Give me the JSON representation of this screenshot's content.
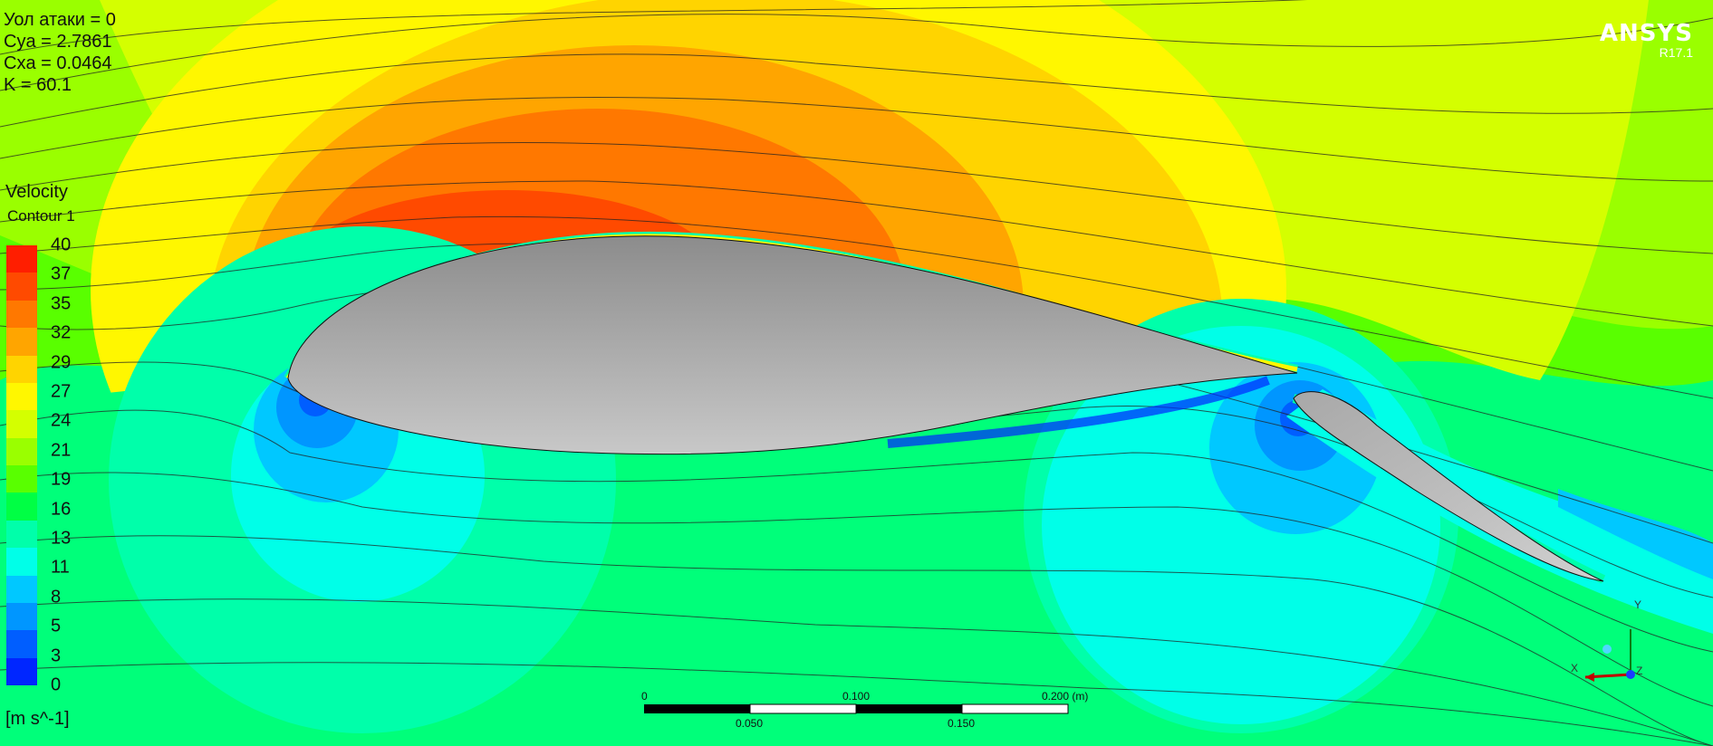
{
  "results": {
    "angle": "Уол атаки = 0",
    "cya": "Cya = 2.7861",
    "cxa": "Cxa = 0.0464",
    "k": "K = 60.1"
  },
  "legend": {
    "variable": "Velocity",
    "name": "Contour 1",
    "units": "[m s^-1]",
    "ticks": [
      "40",
      "37",
      "35",
      "32",
      "29",
      "27",
      "24",
      "21",
      "19",
      "16",
      "13",
      "11",
      "8",
      "5",
      "3",
      "0"
    ],
    "colors": [
      "#ff1e00",
      "#ff4a00",
      "#ff7800",
      "#ffa500",
      "#ffd400",
      "#fff700",
      "#d4ff00",
      "#9aff00",
      "#59ff00",
      "#00ff44",
      "#00ffaa",
      "#00ffe8",
      "#00c8ff",
      "#0096ff",
      "#005eff",
      "#0026ff"
    ]
  },
  "logo": {
    "name": "ANSYS",
    "version": "R17.1"
  },
  "scale_bar": {
    "top_labels": [
      "0",
      "0.100",
      "0.200  (m)"
    ],
    "bottom_labels": [
      "0.050",
      "0.150"
    ]
  },
  "triad": {
    "x_label": "X",
    "y_label": "Y",
    "z_label": "Z"
  }
}
